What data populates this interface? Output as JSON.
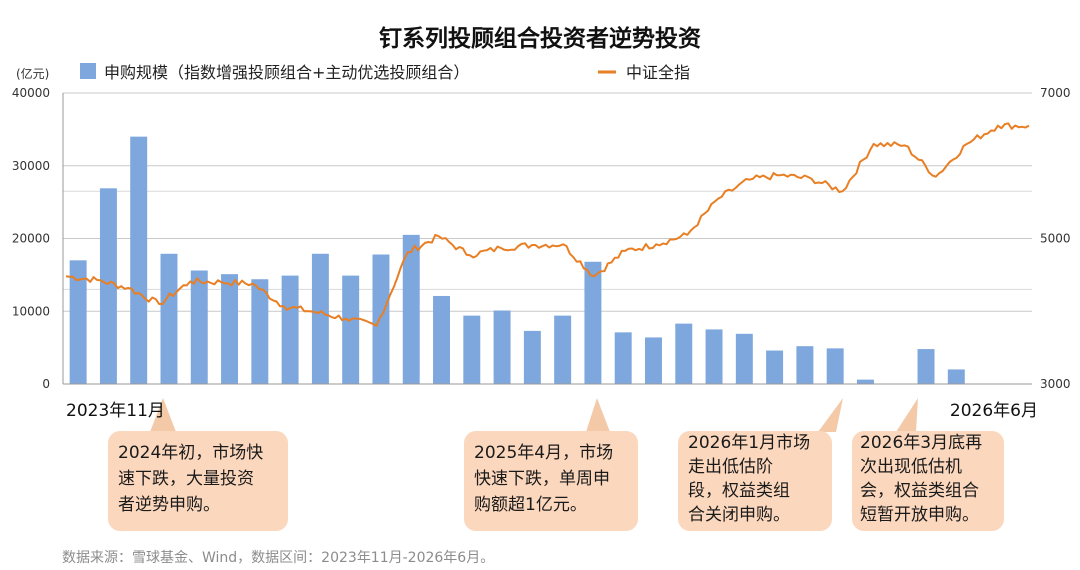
{
  "chart_data": {
    "type": "bar+line",
    "title": "钉系列投顾组合投资者逆势投资",
    "ylabel_left": "(亿元)",
    "ylim_left": [
      0,
      40000
    ],
    "yticks_left": [
      "0",
      "10000",
      "20000",
      "30000",
      "40000"
    ],
    "ylim_right": [
      3000,
      7000
    ],
    "yticks_right": [
      "3000",
      "5000",
      "7000"
    ],
    "x_start_label": "2023年11月",
    "x_end_label": "2026年6月",
    "grid": "horizontal",
    "legend_position": "top",
    "series": [
      {
        "name": "申购规模（指数增强投顾组合+主动优选投顾组合）",
        "type": "bar",
        "color": "#7ea7dd",
        "axis": "left",
        "values": [
          17000,
          26900,
          34000,
          17900,
          15600,
          15100,
          14400,
          14900,
          17900,
          14900,
          17800,
          20500,
          12100,
          9400,
          10100,
          7300,
          9400,
          16800,
          7100,
          6400,
          8300,
          7500,
          6900,
          4600,
          5200,
          4900,
          600,
          0,
          4800,
          2000,
          0,
          0
        ]
      },
      {
        "name": "中证全指",
        "type": "line",
        "color": "#e87f24",
        "axis": "right",
        "points": [
          [
            0,
            4480
          ],
          [
            1,
            4430
          ],
          [
            2,
            4320
          ],
          [
            3,
            4100
          ],
          [
            4,
            4410
          ],
          [
            5,
            4400
          ],
          [
            6,
            4380
          ],
          [
            7,
            4070
          ],
          [
            8,
            3990
          ],
          [
            9,
            3900
          ],
          [
            10,
            3800
          ],
          [
            11,
            4810
          ],
          [
            12,
            5030
          ],
          [
            13,
            4770
          ],
          [
            14,
            4870
          ],
          [
            15,
            4910
          ],
          [
            16,
            4920
          ],
          [
            17,
            4480
          ],
          [
            18,
            4830
          ],
          [
            19,
            4920
          ],
          [
            20,
            5050
          ],
          [
            21,
            5550
          ],
          [
            22,
            5810
          ],
          [
            23,
            5870
          ],
          [
            24,
            5820
          ],
          [
            25,
            5650
          ],
          [
            26,
            6300
          ],
          [
            27,
            6280
          ],
          [
            28,
            5850
          ],
          [
            29,
            6300
          ],
          [
            30,
            6550
          ],
          [
            31,
            6550
          ]
        ]
      }
    ]
  },
  "annotations": [
    {
      "text": "2024年初，市场快\n速下跌，大量投资\n者逆势申购。"
    },
    {
      "text": "2025年4月，市场\n快速下跌，单周申\n购额超1亿元。"
    },
    {
      "text": "2026年1月市场\n走出低估阶\n段，权益类组\n合关闭申购。"
    },
    {
      "text": "2026年3月底再\n次出现低估机\n会，权益类组合\n短暂开放申购。"
    }
  ],
  "source_note": "数据来源：雪球基金、Wind，数据区间：2023年11月-2026年6月。",
  "colors": {
    "bar": "#7ea7dd",
    "line": "#e87f24",
    "note_bg": "#fbd7bd",
    "pointer": "#f3c9a8"
  }
}
